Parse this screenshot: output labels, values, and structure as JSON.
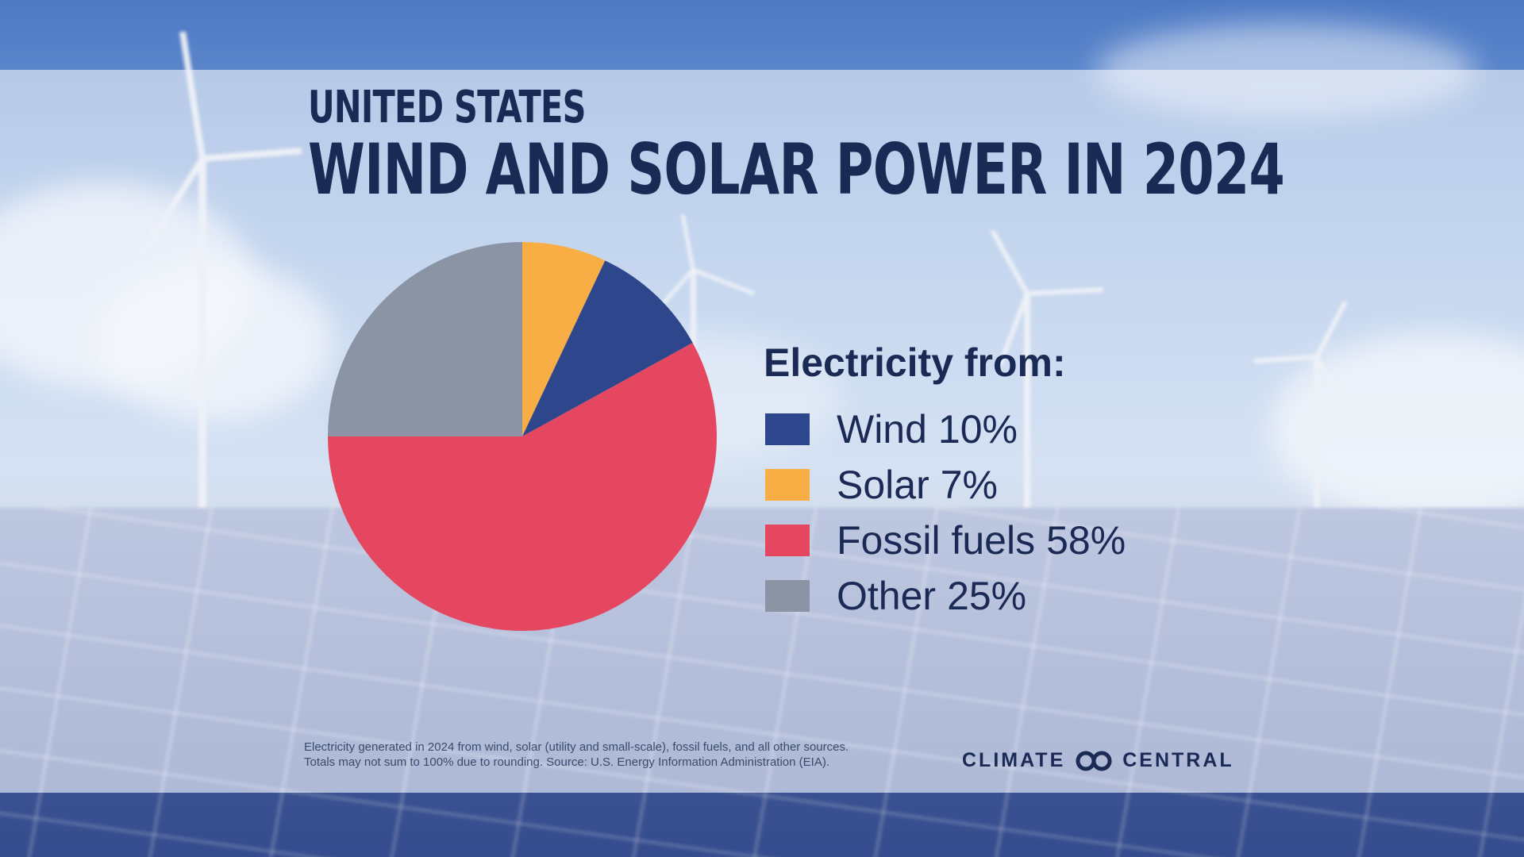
{
  "header": {
    "subtitle": "UNITED STATES",
    "title": "WIND AND SOLAR POWER IN 2024"
  },
  "chart_data": {
    "type": "pie",
    "legend_title": "Electricity from:",
    "legend_placement": "right",
    "slices": [
      {
        "label": "Wind",
        "value": 10,
        "display": "10%",
        "color": "#2e468c"
      },
      {
        "label": "Solar",
        "value": 7,
        "display": "7%",
        "color": "#f9ad45"
      },
      {
        "label": "Fossil fuels",
        "value": 58,
        "display": "58%",
        "color": "#e4475f"
      },
      {
        "label": "Other",
        "value": 25,
        "display": "25%",
        "color": "#8a94a5"
      }
    ],
    "pie_order": [
      "Solar",
      "Wind",
      "Fossil fuels",
      "Other"
    ]
  },
  "footnote": {
    "line1": "Electricity generated in 2024 from wind, solar (utility and small-scale), fossil fuels, and all other sources.",
    "line2": "Totals may not sum to 100% due to rounding. Source: U.S. Energy Information Administration (EIA)."
  },
  "logo": {
    "left": "CLIMATE",
    "right": "CENTRAL",
    "icon": "climate-central-logo-icon"
  }
}
